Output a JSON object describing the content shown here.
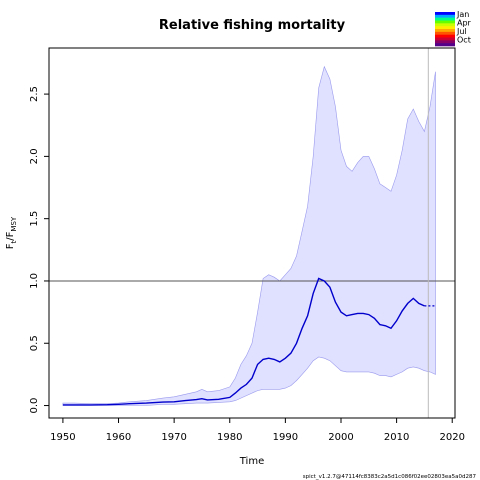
{
  "chart_data": {
    "type": "line",
    "title": "Relative fishing mortality",
    "xlabel": "Time",
    "ylabel_main": "F",
    "ylabel_sub1": "t",
    "ylabel_mid": "/F",
    "ylabel_sub2": "MSY",
    "xlim": [
      1947.5,
      2020.5
    ],
    "ylim": [
      -0.1,
      2.87
    ],
    "x_ticks": [
      "1950",
      "1960",
      "1970",
      "1980",
      "1990",
      "2000",
      "2010",
      "2020"
    ],
    "y_ticks": [
      "0.0",
      "0.5",
      "1.0",
      "1.5",
      "2.0",
      "2.5"
    ],
    "reference_line": 1.0,
    "vertical_line": 2015.7,
    "colors": {
      "estimate": "#0000cc",
      "ci_fill": "#e0e0ff",
      "ci_edge": "#9999ee",
      "reference": "#555555",
      "vertical": "#bbbbbb"
    },
    "series": [
      {
        "x": [
          1950,
          1952,
          1955,
          1958,
          1960,
          1962,
          1965,
          1968,
          1970,
          1972,
          1974,
          1975,
          1976,
          1978,
          1980,
          1981,
          1982,
          1983,
          1984,
          1985,
          1986,
          1987,
          1988,
          1989,
          1990,
          1991,
          1992,
          1993,
          1994,
          1995,
          1996,
          1997,
          1998,
          1999,
          2000,
          2001,
          2002,
          2003,
          2004,
          2005,
          2006,
          2007,
          2008,
          2009,
          2010,
          2011,
          2012,
          2013,
          2014,
          2015,
          2016,
          2017
        ],
        "values": [
          0.005,
          0.005,
          0.005,
          0.007,
          0.01,
          0.015,
          0.02,
          0.028,
          0.03,
          0.04,
          0.048,
          0.055,
          0.045,
          0.05,
          0.065,
          0.1,
          0.14,
          0.17,
          0.22,
          0.33,
          0.37,
          0.38,
          0.37,
          0.35,
          0.38,
          0.42,
          0.5,
          0.62,
          0.72,
          0.9,
          1.02,
          1.0,
          0.95,
          0.83,
          0.75,
          0.72,
          0.73,
          0.74,
          0.74,
          0.73,
          0.7,
          0.65,
          0.64,
          0.62,
          0.68,
          0.76,
          0.82,
          0.86,
          0.82,
          0.8,
          0.8,
          0.8
        ]
      },
      {
        "x": [
          1950,
          1952,
          1955,
          1958,
          1960,
          1962,
          1965,
          1968,
          1970,
          1972,
          1974,
          1975,
          1976,
          1978,
          1980,
          1981,
          1982,
          1983,
          1984,
          1985,
          1986,
          1987,
          1988,
          1989,
          1990,
          1991,
          1992,
          1993,
          1994,
          1995,
          1996,
          1997,
          1998,
          1999,
          2000,
          2001,
          2002,
          2003,
          2004,
          2005,
          2006,
          2007,
          2008,
          2009,
          2010,
          2011,
          2012,
          2013,
          2014,
          2015,
          2016,
          2017
        ],
        "lower": [
          0.0,
          0.0,
          0.0,
          0.0,
          0.0,
          0.0,
          0.0,
          0.01,
          0.01,
          0.015,
          0.02,
          0.02,
          0.02,
          0.025,
          0.03,
          0.04,
          0.06,
          0.08,
          0.1,
          0.12,
          0.13,
          0.13,
          0.13,
          0.13,
          0.14,
          0.16,
          0.2,
          0.25,
          0.3,
          0.36,
          0.39,
          0.38,
          0.36,
          0.32,
          0.28,
          0.27,
          0.27,
          0.27,
          0.27,
          0.27,
          0.26,
          0.24,
          0.24,
          0.23,
          0.25,
          0.27,
          0.3,
          0.31,
          0.3,
          0.28,
          0.27,
          0.25
        ],
        "upper": [
          0.02,
          0.02,
          0.015,
          0.015,
          0.02,
          0.03,
          0.04,
          0.06,
          0.07,
          0.09,
          0.11,
          0.13,
          0.11,
          0.12,
          0.15,
          0.22,
          0.33,
          0.4,
          0.5,
          0.75,
          1.02,
          1.05,
          1.03,
          1.0,
          1.05,
          1.1,
          1.2,
          1.4,
          1.6,
          2.0,
          2.55,
          2.72,
          2.62,
          2.4,
          2.05,
          1.92,
          1.88,
          1.95,
          2.0,
          2.0,
          1.9,
          1.78,
          1.75,
          1.72,
          1.85,
          2.05,
          2.3,
          2.38,
          2.28,
          2.2,
          2.4,
          2.68
        ]
      }
    ],
    "legend": {
      "placement": "top-right",
      "labels": [
        "Jan",
        "Apr",
        "Jul",
        "Oct"
      ],
      "colors": [
        "#0000ff",
        "#00aaff",
        "#00ff88",
        "#66ff00",
        "#ccff00",
        "#ffee00",
        "#ffaa00",
        "#ff5500",
        "#ff0000",
        "#cc0033",
        "#880066",
        "#550088"
      ]
    },
    "footer": "spict_v1.2.7@47114fc8383c2a5d1c086f02ee02803ea5a0d287"
  }
}
